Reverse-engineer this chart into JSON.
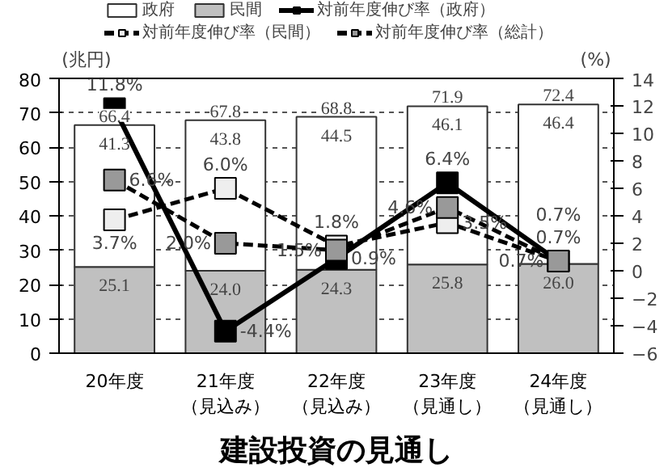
{
  "chart_data": {
    "type": "bar",
    "title": "建設投資の見通し",
    "ylabel": "(兆円)",
    "y2label": "(%)",
    "categories": [
      "20年度",
      "21年度（見込み）",
      "22年度（見込み）",
      "23年度（見通し）",
      "24年度（見通し）"
    ],
    "stacked": true,
    "legend": "top",
    "grid": "y",
    "ylim": [
      0,
      80
    ],
    "yticks": [
      0,
      10,
      20,
      30,
      40,
      50,
      60,
      70,
      80
    ],
    "y2lim": [
      -6,
      14
    ],
    "y2ticks": [
      -6,
      -4,
      -2,
      0,
      2,
      4,
      6,
      8,
      10,
      12,
      14
    ],
    "series": [
      {
        "name": "民間",
        "color": "#c0c0c0",
        "values": [
          25.1,
          24.0,
          24.3,
          25.8,
          26.0
        ],
        "value_labels": [
          "25.1",
          "24.0",
          "24.3",
          "25.8",
          "26.0"
        ]
      },
      {
        "name": "政府",
        "color": "#ffffff",
        "values": [
          41.3,
          43.8,
          44.5,
          46.1,
          46.4
        ],
        "value_labels": [
          "41.3",
          "43.8",
          "44.5",
          "46.1",
          "46.4"
        ]
      },
      {
        "name": "対前年度伸び率（政府）",
        "type": "line",
        "axis": "y2",
        "color": "#000000",
        "marker": "square",
        "line_style": "solid",
        "values": [
          11.8,
          -4.4,
          0.9,
          6.4,
          0.7
        ],
        "value_labels": [
          "11.8%",
          "-4.4%",
          "0.9%",
          "6.4%",
          "0.7%"
        ]
      },
      {
        "name": "対前年度伸び率（民間）",
        "type": "line",
        "axis": "y2",
        "color": "#eeeeee",
        "marker": "square",
        "line_style": "dashed",
        "values": [
          3.7,
          6.0,
          1.8,
          3.5,
          0.7
        ],
        "value_labels": [
          "3.7%",
          "6.0%",
          "1.8%",
          "3.5%",
          "0.7%"
        ]
      },
      {
        "name": "対前年度伸び率（総計）",
        "type": "line",
        "axis": "y2",
        "color": "#999999",
        "marker": "square",
        "line_style": "dashed",
        "values": [
          6.6,
          2.0,
          1.5,
          4.6,
          0.7
        ],
        "value_labels": [
          "6.6%",
          "2.0%",
          "1.5%",
          "4.6%",
          "0.7%"
        ]
      }
    ],
    "totals": [
      "66.4",
      "67.8",
      "68.8",
      "71.9",
      "72.4"
    ]
  }
}
